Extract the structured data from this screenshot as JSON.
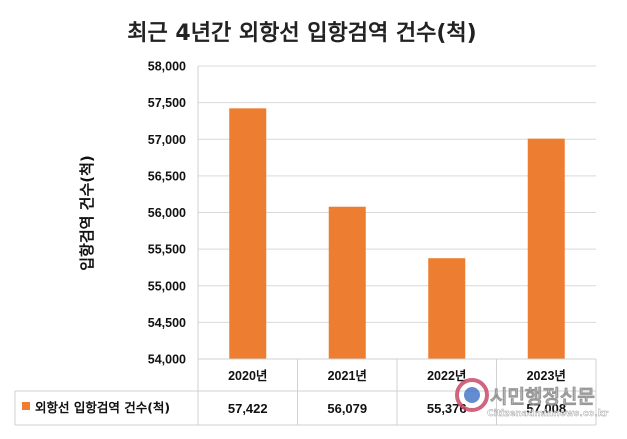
{
  "chart_data": {
    "type": "bar",
    "title": "최근 4년간 외항선 입항검역 건수(척)",
    "ylabel": "입항검역 건수(척)",
    "xlabel": "",
    "categories": [
      "2020년",
      "2021년",
      "2022년",
      "2023년"
    ],
    "series": [
      {
        "name": "외항선 입항검역 건수(척)",
        "values": [
          57422,
          56079,
          55376,
          57008
        ],
        "color": "#ed7d31"
      }
    ],
    "data_table_labels": [
      "57,422",
      "56,079",
      "55,376",
      "57,008"
    ],
    "ylim": [
      54000,
      58000
    ],
    "yticks": [
      54000,
      54500,
      55000,
      55500,
      56000,
      56500,
      57000,
      57500,
      58000
    ],
    "ytick_labels": [
      "54,000",
      "54,500",
      "55,000",
      "55,500",
      "56,000",
      "56,500",
      "57,000",
      "57,500",
      "58,000"
    ],
    "grid": true,
    "legend": "bottom data table"
  },
  "watermark": {
    "name": "시민행정신문",
    "url": "Citizenadminnews.co.kr"
  }
}
